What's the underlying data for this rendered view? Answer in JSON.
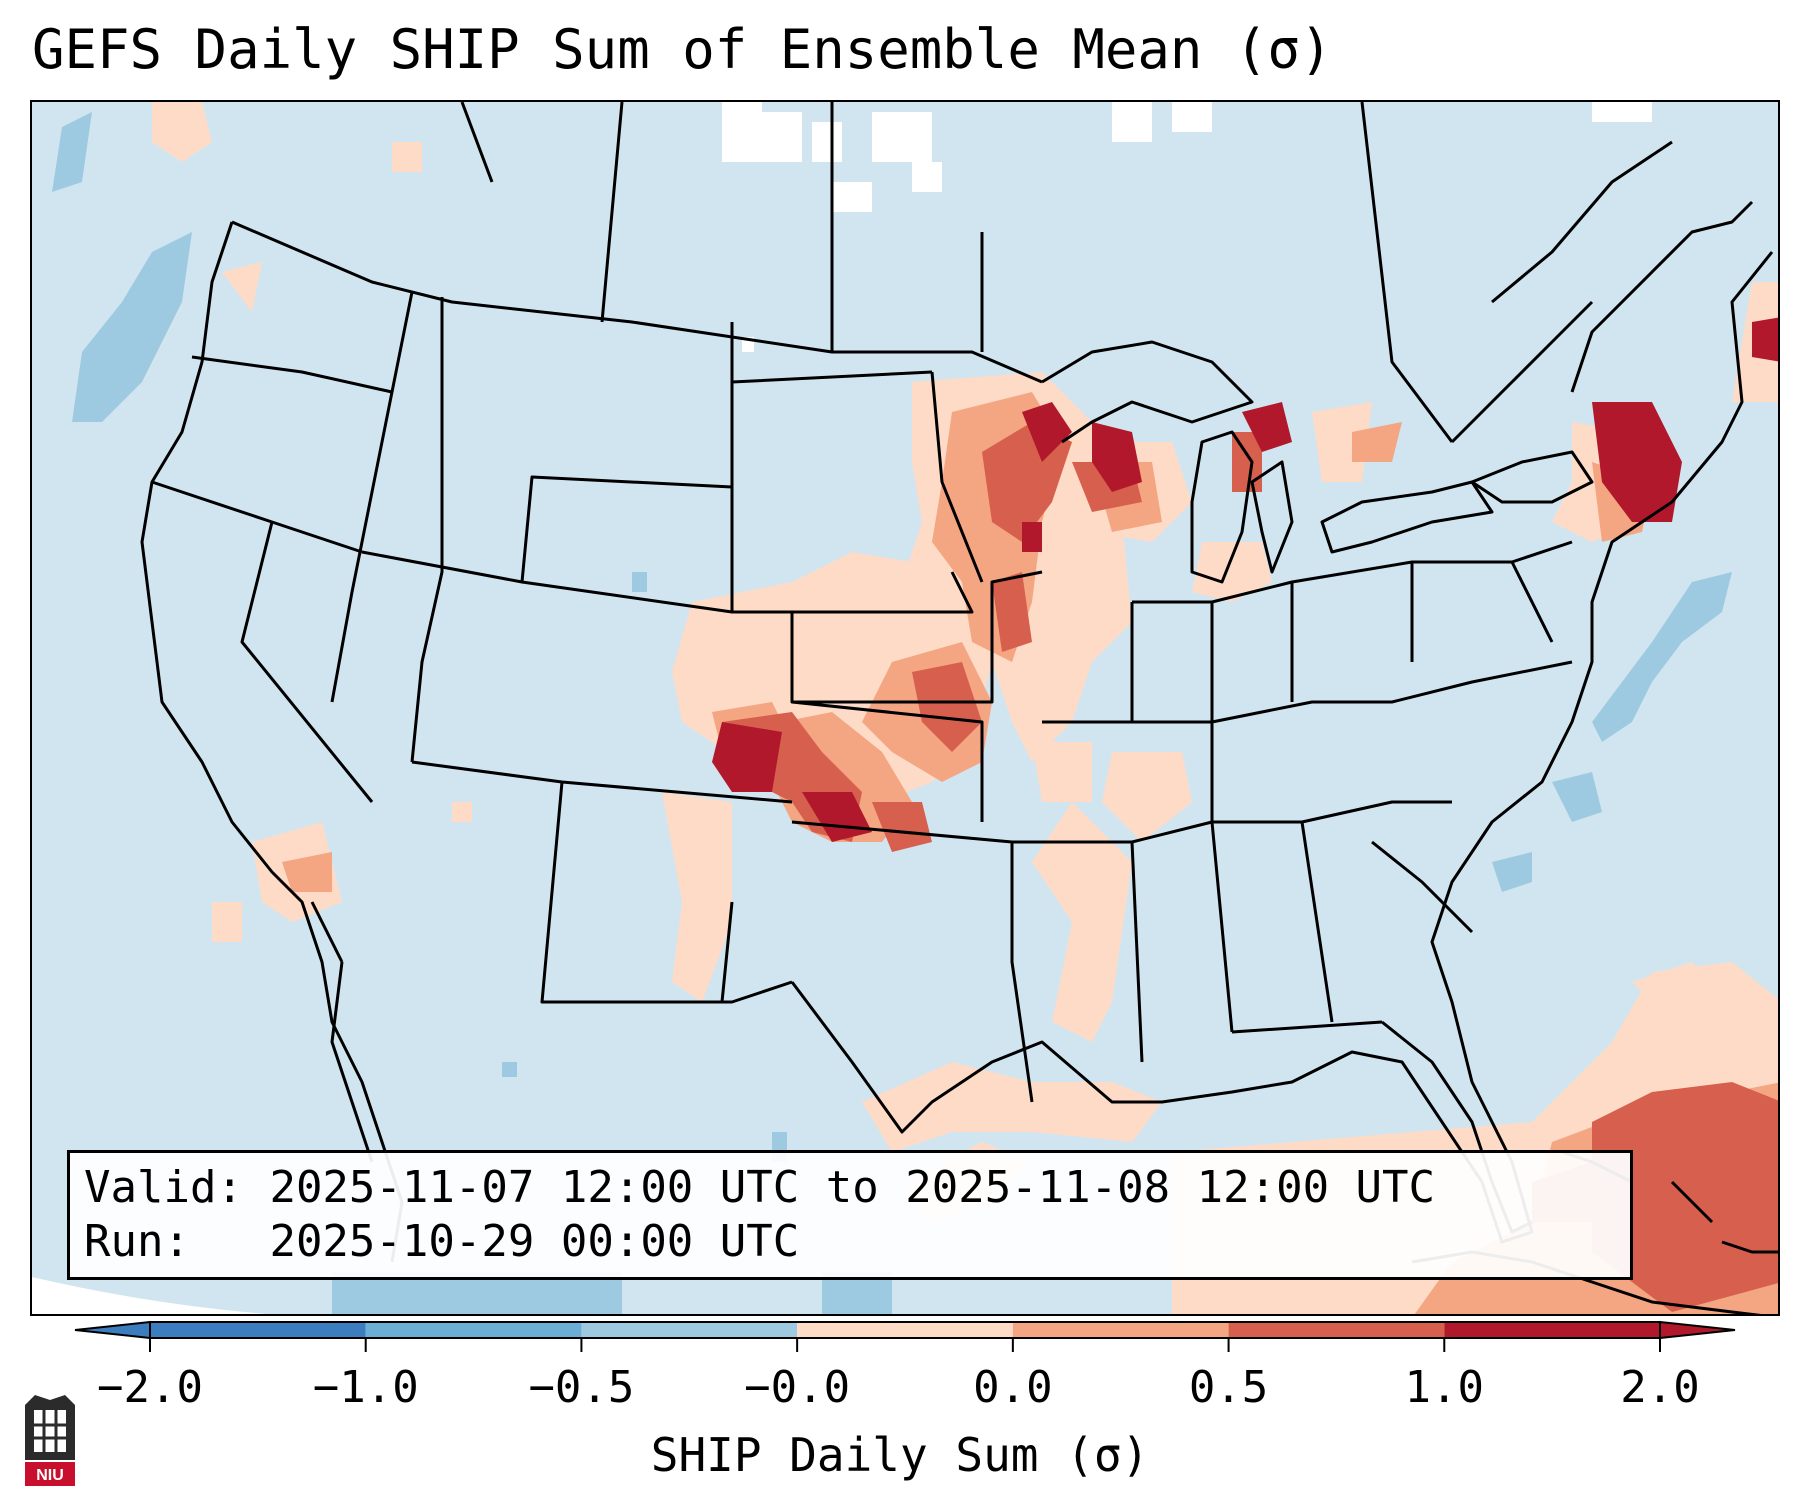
{
  "title": "GEFS Daily SHIP Sum of Ensemble Mean (σ)",
  "info": {
    "valid_label": "Valid:",
    "valid_value": "2025-11-07 12:00 UTC to 2025-11-08 12:00 UTC",
    "run_label": "Run:",
    "run_value": "2025-10-29 00:00 UTC"
  },
  "colorbar": {
    "label": "SHIP Daily Sum (σ)",
    "ticks": [
      "−2.0",
      "−1.0",
      "−0.5",
      "−0.0",
      "0.0",
      "0.5",
      "1.0",
      "2.0"
    ],
    "bin_colors": [
      "#3b7dbf",
      "#6baed6",
      "#9ecae1",
      "#d1e5f0",
      "#fddbc7",
      "#f4a582",
      "#d6604d",
      "#b2182b"
    ],
    "extend": "both"
  },
  "colors": {
    "ocean_land_base": "#d1e5f0",
    "border": "#000000"
  },
  "logo": {
    "text": "NIU"
  }
}
